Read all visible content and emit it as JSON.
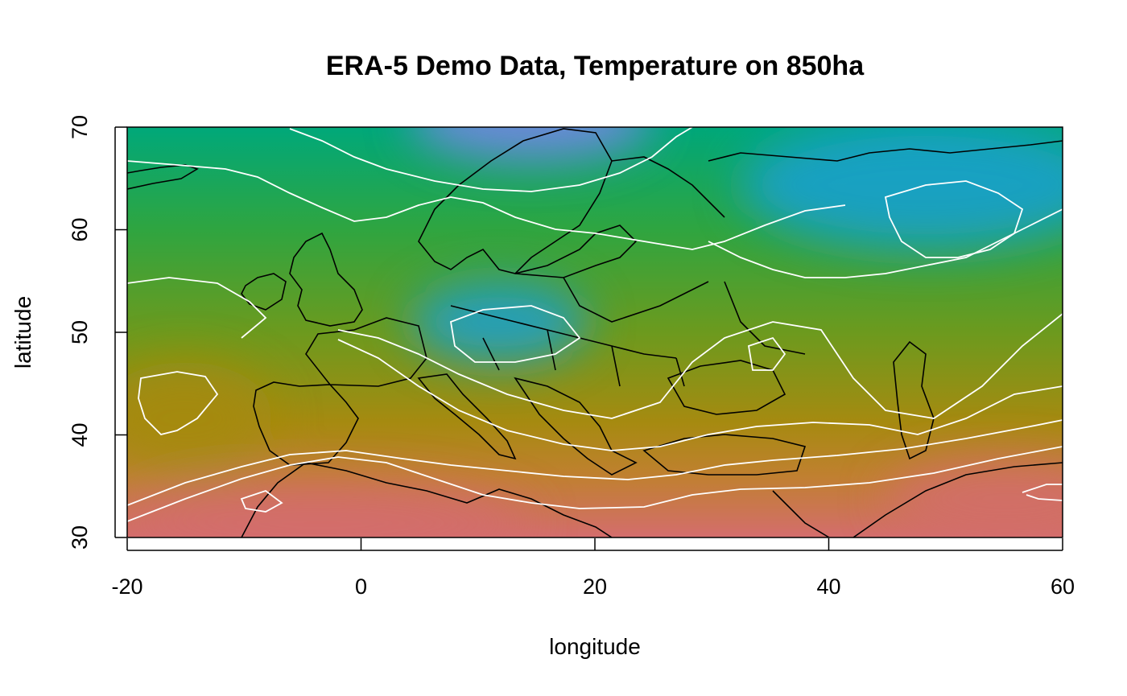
{
  "chart_data": {
    "type": "heatmap",
    "title": "ERA-5 Demo Data, Temperature on 850ha",
    "xlabel": "longitude",
    "ylabel": "latitude",
    "xlim": [
      -20,
      60
    ],
    "ylim": [
      30,
      70
    ],
    "xticks": [
      -20,
      0,
      20,
      40,
      60
    ],
    "yticks": [
      30,
      40,
      50,
      60,
      70
    ],
    "grid": false,
    "legend": "none",
    "colors": {
      "coldest": "#7f84e8",
      "cold": "#1aa0d4",
      "cool": "#00a87a",
      "mild": "#2fa540",
      "medium": "#6c9a1e",
      "warm": "#a68a10",
      "warmer": "#c08030",
      "hot": "#d46d6d",
      "contour_color": "#ffffff",
      "coastline_color": "#000000"
    }
  }
}
